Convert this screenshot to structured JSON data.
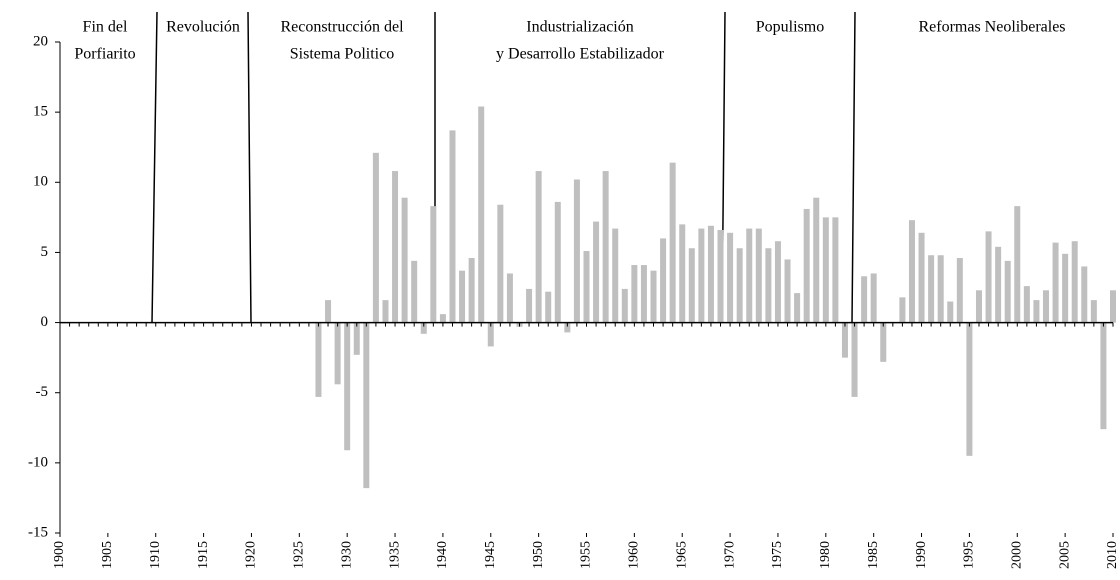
{
  "chart_data": {
    "type": "bar",
    "x": [
      1900,
      1901,
      1902,
      1903,
      1904,
      1905,
      1906,
      1907,
      1908,
      1909,
      1910,
      1911,
      1912,
      1913,
      1914,
      1915,
      1916,
      1917,
      1918,
      1919,
      1920,
      1921,
      1922,
      1923,
      1924,
      1925,
      1926,
      1927,
      1928,
      1929,
      1930,
      1931,
      1932,
      1933,
      1934,
      1935,
      1936,
      1937,
      1938,
      1939,
      1940,
      1941,
      1942,
      1943,
      1944,
      1945,
      1946,
      1947,
      1948,
      1949,
      1950,
      1951,
      1952,
      1953,
      1954,
      1955,
      1956,
      1957,
      1958,
      1959,
      1960,
      1961,
      1962,
      1963,
      1964,
      1965,
      1966,
      1967,
      1968,
      1969,
      1970,
      1971,
      1972,
      1973,
      1974,
      1975,
      1976,
      1977,
      1978,
      1979,
      1980,
      1981,
      1982,
      1983,
      1984,
      1985,
      1986,
      1987,
      1988,
      1989,
      1990,
      1991,
      1992,
      1993,
      1994,
      1995,
      1996,
      1997,
      1998,
      1999,
      2000,
      2001,
      2002,
      2003,
      2004,
      2005,
      2006,
      2007,
      2008,
      2009,
      2010
    ],
    "values": [
      null,
      null,
      null,
      null,
      null,
      null,
      null,
      null,
      null,
      null,
      null,
      null,
      null,
      null,
      null,
      null,
      null,
      null,
      null,
      null,
      null,
      null,
      null,
      null,
      null,
      null,
      null,
      -5.3,
      1.6,
      -4.4,
      -9.1,
      -2.3,
      -11.8,
      12.1,
      1.6,
      10.8,
      8.9,
      4.4,
      -0.8,
      8.3,
      0.6,
      13.7,
      3.7,
      4.6,
      15.4,
      -1.7,
      8.4,
      3.5,
      -0.3,
      2.4,
      10.8,
      2.2,
      8.6,
      -0.7,
      10.2,
      5.1,
      7.2,
      10.8,
      6.7,
      2.4,
      4.1,
      4.1,
      3.7,
      6.0,
      11.4,
      7.0,
      5.3,
      6.7,
      6.9,
      6.6,
      6.4,
      5.3,
      6.7,
      6.7,
      5.3,
      5.8,
      4.5,
      2.1,
      8.1,
      8.9,
      7.5,
      7.5,
      -2.5,
      -5.3,
      3.3,
      3.5,
      -2.8,
      null,
      1.8,
      7.3,
      6.4,
      4.8,
      4.8,
      1.5,
      4.6,
      -9.5,
      2.3,
      6.5,
      5.4,
      4.4,
      8.3,
      2.6,
      1.6,
      2.3,
      5.7,
      4.9,
      5.8,
      4.0,
      1.6,
      -7.6,
      2.3
    ],
    "color": "#bfbfbf",
    "xlim": [
      1900,
      2010
    ],
    "xticks": [
      1900,
      1905,
      1910,
      1915,
      1920,
      1925,
      1930,
      1935,
      1940,
      1945,
      1950,
      1955,
      1960,
      1965,
      1970,
      1975,
      1980,
      1985,
      1990,
      1995,
      2000,
      2005,
      2010
    ],
    "ylim": [
      -15,
      20
    ],
    "yticks": [
      -15,
      -10,
      -5,
      0,
      5,
      10,
      15,
      20
    ],
    "annotations": [
      {
        "lines": [
          "Fin del",
          "Porfiarito"
        ]
      },
      {
        "lines": [
          "Revolución"
        ]
      },
      {
        "lines": [
          "Reconstrucción del",
          "Sistema Politico"
        ]
      },
      {
        "lines": [
          "Industrialización",
          "y Desarrollo Estabilizador"
        ]
      },
      {
        "lines": [
          "Populismo"
        ]
      },
      {
        "lines": [
          "Reformas Neoliberales"
        ]
      }
    ]
  }
}
